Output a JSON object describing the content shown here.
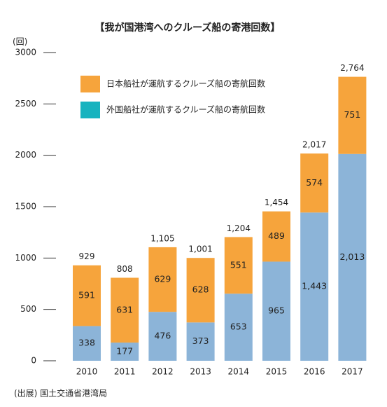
{
  "chart_data": {
    "type": "stacked-bar",
    "title": "【我が国港湾へのクルーズ船の寄港回数】",
    "y_unit": "(回)",
    "source": "(出展) 国土交通省港湾局",
    "categories": [
      "2010",
      "2011",
      "2012",
      "2013",
      "2014",
      "2015",
      "2016",
      "2017"
    ],
    "series": [
      {
        "name": "外国船社が運航するクルーズ船の寄航回数",
        "color": "#8cb4d8",
        "legend_color": "#17b3bf",
        "values": [
          338,
          177,
          476,
          373,
          653,
          965,
          1443,
          2013
        ],
        "value_labels": [
          "338",
          "177",
          "476",
          "373",
          "653",
          "965",
          "1,443",
          "2,013"
        ]
      },
      {
        "name": "日本船社が運航するクルーズ船の寄航回数",
        "color": "#f6a43c",
        "values": [
          591,
          631,
          629,
          628,
          551,
          489,
          574,
          751
        ]
      }
    ],
    "totals": {
      "values": [
        929,
        808,
        1105,
        1001,
        1204,
        1454,
        2017,
        2764
      ],
      "value_labels": [
        "929",
        "808",
        "1,105",
        "1,001",
        "1,204",
        "1,454",
        "2,017",
        "2,764"
      ]
    },
    "ylim": [
      0,
      3000
    ],
    "yticks": [
      0,
      500,
      1000,
      1500,
      2000,
      2500,
      3000
    ],
    "grid": false
  }
}
